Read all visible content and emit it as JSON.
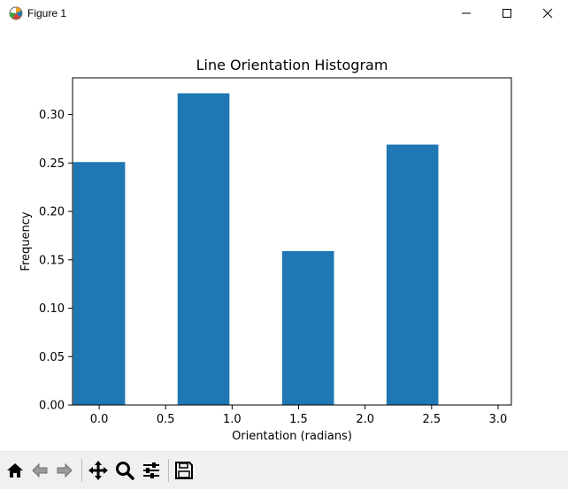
{
  "window": {
    "title": "Figure 1",
    "controls": [
      "minimize",
      "maximize",
      "close"
    ]
  },
  "toolbar": {
    "buttons": [
      {
        "name": "home-icon",
        "label": "Home"
      },
      {
        "name": "back-icon",
        "label": "Back"
      },
      {
        "name": "forward-icon",
        "label": "Forward"
      },
      {
        "name": "pan-icon",
        "label": "Pan"
      },
      {
        "name": "zoom-icon",
        "label": "Zoom"
      },
      {
        "name": "subplots-icon",
        "label": "Configure subplots"
      },
      {
        "name": "save-icon",
        "label": "Save"
      }
    ]
  },
  "chart_data": {
    "type": "bar",
    "title": "Line Orientation Histogram",
    "xlabel": "Orientation (radians)",
    "ylabel": "Frequency",
    "bar_color": "#1f77b4",
    "x": [
      0.0,
      0.785,
      1.571,
      2.356
    ],
    "bar_width": 0.39,
    "values": [
      0.251,
      0.322,
      0.159,
      0.269
    ],
    "xlim": [
      -0.2,
      3.1
    ],
    "ylim": [
      0.0,
      0.338
    ],
    "xticks": [
      0.0,
      0.5,
      1.0,
      1.5,
      2.0,
      2.5,
      3.0
    ],
    "xtick_labels": [
      "0.0",
      "0.5",
      "1.0",
      "1.5",
      "2.0",
      "2.5",
      "3.0"
    ],
    "yticks": [
      0.0,
      0.05,
      0.1,
      0.15,
      0.2,
      0.25,
      0.3
    ],
    "ytick_labels": [
      "0.00",
      "0.05",
      "0.10",
      "0.15",
      "0.20",
      "0.25",
      "0.30"
    ],
    "grid": false
  }
}
